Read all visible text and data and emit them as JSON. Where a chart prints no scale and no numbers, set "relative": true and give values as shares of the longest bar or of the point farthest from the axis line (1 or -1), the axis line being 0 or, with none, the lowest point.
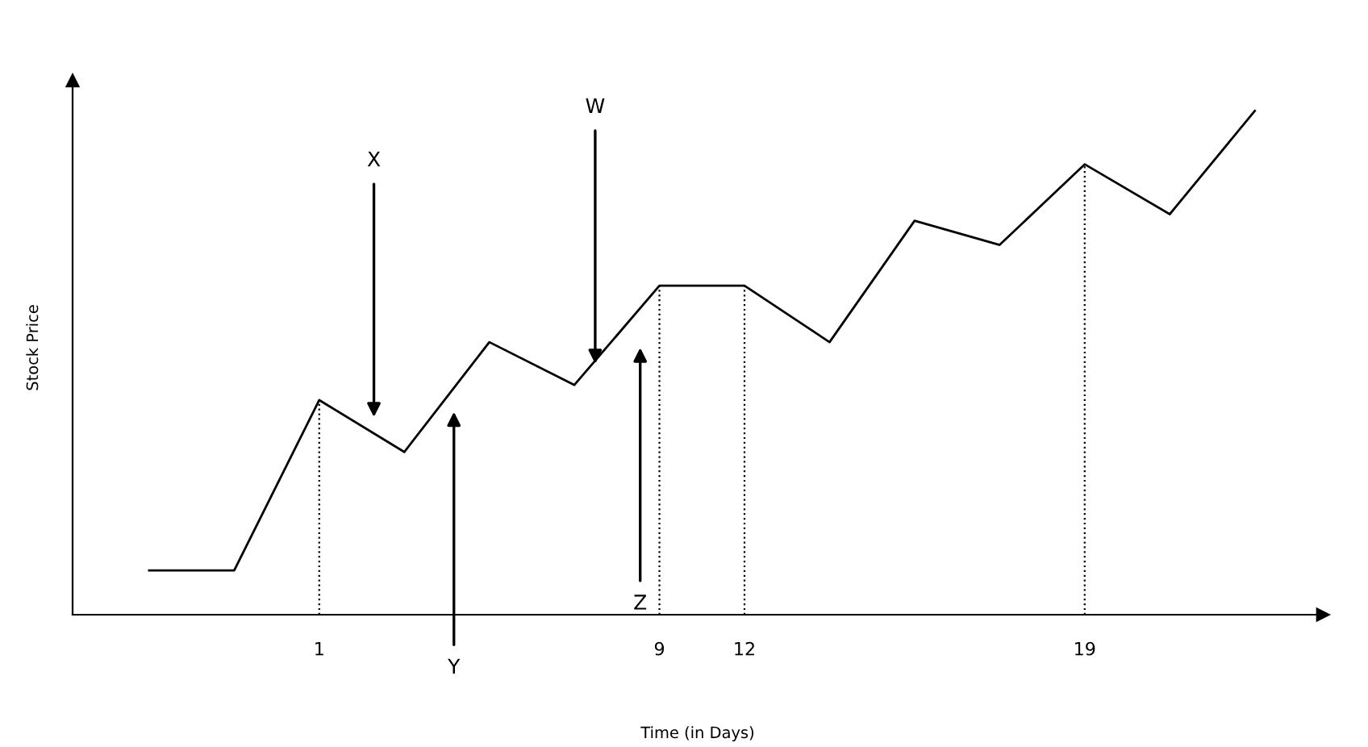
{
  "chart_data": {
    "type": "line",
    "relative": true,
    "xlabel": "Time (in Days)",
    "ylabel": "Stock Price",
    "categories": [
      null,
      null,
      "1",
      null,
      null,
      null,
      "9",
      "12",
      null,
      null,
      null,
      "19",
      null,
      null
    ],
    "series": [
      {
        "color": "#000000",
        "values": [
          0.088,
          0.088,
          0.426,
          0.323,
          0.541,
          0.456,
          0.653,
          0.653,
          0.541,
          0.782,
          0.734,
          0.894,
          0.795,
          1
        ]
      }
    ],
    "annotations": [
      "X",
      "Y",
      "W",
      "Z"
    ],
    "ref_lines": [
      {
        "axis": "x",
        "value": "1",
        "line_style": "dotted",
        "color": "#000000"
      },
      {
        "axis": "x",
        "value": "9",
        "line_style": "dotted",
        "color": "#000000"
      },
      {
        "axis": "x",
        "value": "12",
        "line_style": "dotted",
        "color": "#000000"
      },
      {
        "axis": "x",
        "value": "19",
        "line_style": "dotted",
        "color": "#000000"
      }
    ],
    "grid": false,
    "legend": false
  }
}
